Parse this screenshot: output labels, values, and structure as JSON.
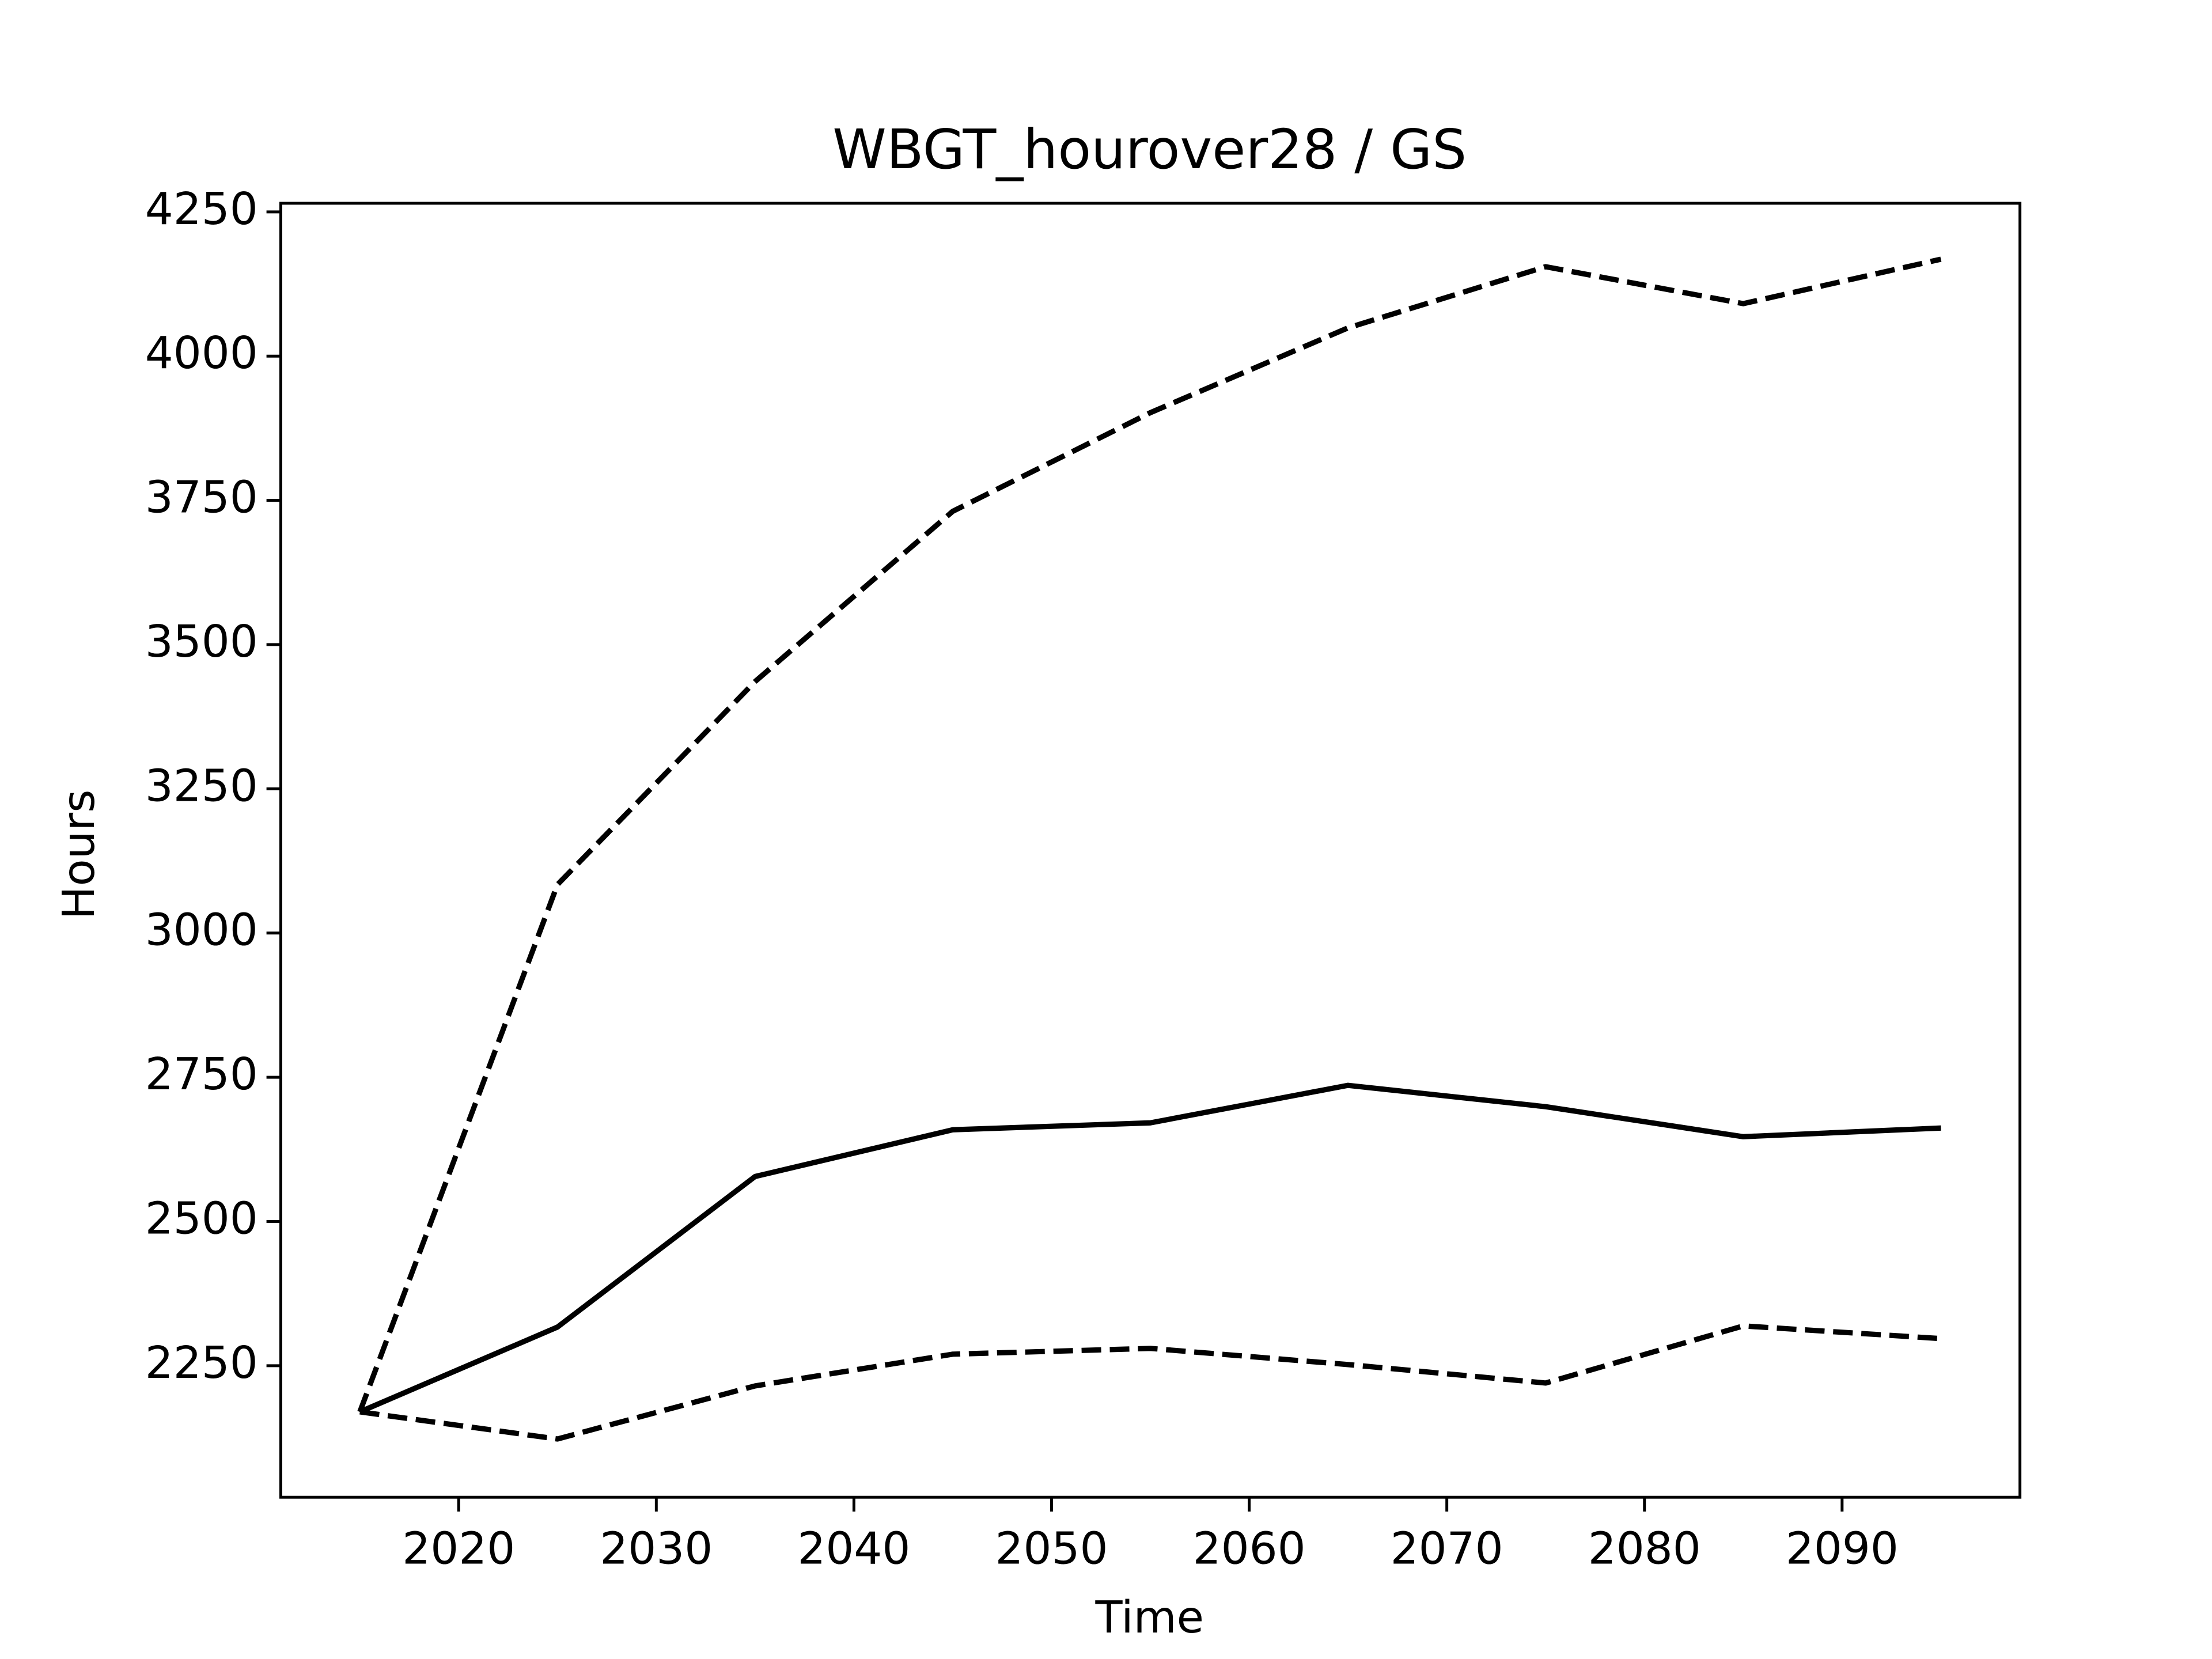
{
  "chart_data": {
    "type": "line",
    "title": "WBGT_hourover28 / GS",
    "x_label": "Time",
    "y_label": "Hours",
    "x": [
      2015,
      2025,
      2035,
      2045,
      2055,
      2065,
      2075,
      2085,
      2095
    ],
    "series": [
      {
        "color": "#000000",
        "linestyle": "solid",
        "values": [
          2170,
          2317,
          2578,
          2659,
          2671,
          2736,
          2699,
          2647,
          2662
        ]
      },
      {
        "color": "#000000",
        "linestyle": "dashed",
        "values": [
          2170,
          3084,
          3436,
          3731,
          3902,
          4049,
          4155,
          4091,
          4168
        ]
      },
      {
        "color": "#000000",
        "linestyle": "dashed",
        "values": [
          2170,
          2123,
          2215,
          2270,
          2280,
          2252,
          2220,
          2319,
          2297
        ]
      }
    ],
    "xlim": [
      2011,
      2099
    ],
    "xticks": [
      2020,
      2030,
      2040,
      2050,
      2060,
      2070,
      2080,
      2090
    ],
    "ylim": [
      2022,
      4265
    ],
    "yticks": [
      2250,
      2500,
      2750,
      3000,
      3250,
      3500,
      3750,
      4000,
      4250
    ],
    "grid": false
  }
}
